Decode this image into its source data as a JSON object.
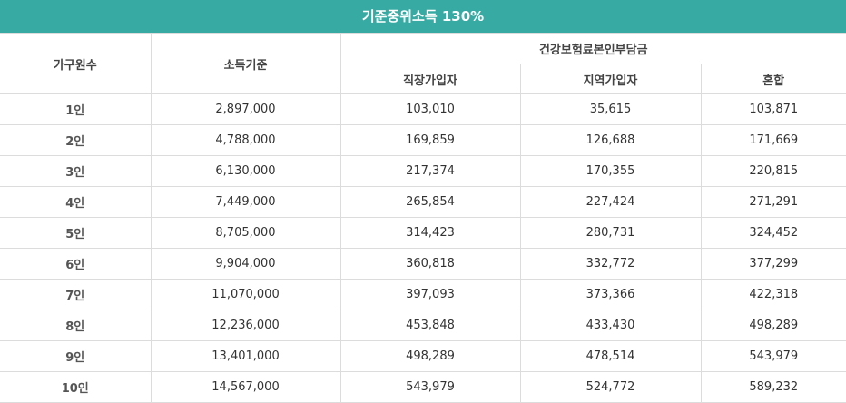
{
  "title": "기준중위소득 130%",
  "headers": {
    "household": "가구원수",
    "income": "소득기준",
    "group": "건강보험료본인부담금",
    "sub": [
      "직장가입자",
      "지역가입자",
      "혼합"
    ]
  },
  "rows": [
    {
      "size": "1인",
      "income": "2,897,000",
      "employee": "103,010",
      "regional": "35,615",
      "mixed": "103,871"
    },
    {
      "size": "2인",
      "income": "4,788,000",
      "employee": "169,859",
      "regional": "126,688",
      "mixed": "171,669"
    },
    {
      "size": "3인",
      "income": "6,130,000",
      "employee": "217,374",
      "regional": "170,355",
      "mixed": "220,815"
    },
    {
      "size": "4인",
      "income": "7,449,000",
      "employee": "265,854",
      "regional": "227,424",
      "mixed": "271,291"
    },
    {
      "size": "5인",
      "income": "8,705,000",
      "employee": "314,423",
      "regional": "280,731",
      "mixed": "324,452"
    },
    {
      "size": "6인",
      "income": "9,904,000",
      "employee": "360,818",
      "regional": "332,772",
      "mixed": "377,299"
    },
    {
      "size": "7인",
      "income": "11,070,000",
      "employee": "397,093",
      "regional": "373,366",
      "mixed": "422,318"
    },
    {
      "size": "8인",
      "income": "12,236,000",
      "employee": "453,848",
      "regional": "433,430",
      "mixed": "498,289"
    },
    {
      "size": "9인",
      "income": "13,401,000",
      "employee": "498,289",
      "regional": "478,514",
      "mixed": "543,979"
    },
    {
      "size": "10인",
      "income": "14,567,000",
      "employee": "543,979",
      "regional": "524,772",
      "mixed": "589,232"
    }
  ],
  "colors": {
    "title_bg": "#36aaa3",
    "title_text": "#ffffff",
    "border": "#dcdcdc"
  }
}
